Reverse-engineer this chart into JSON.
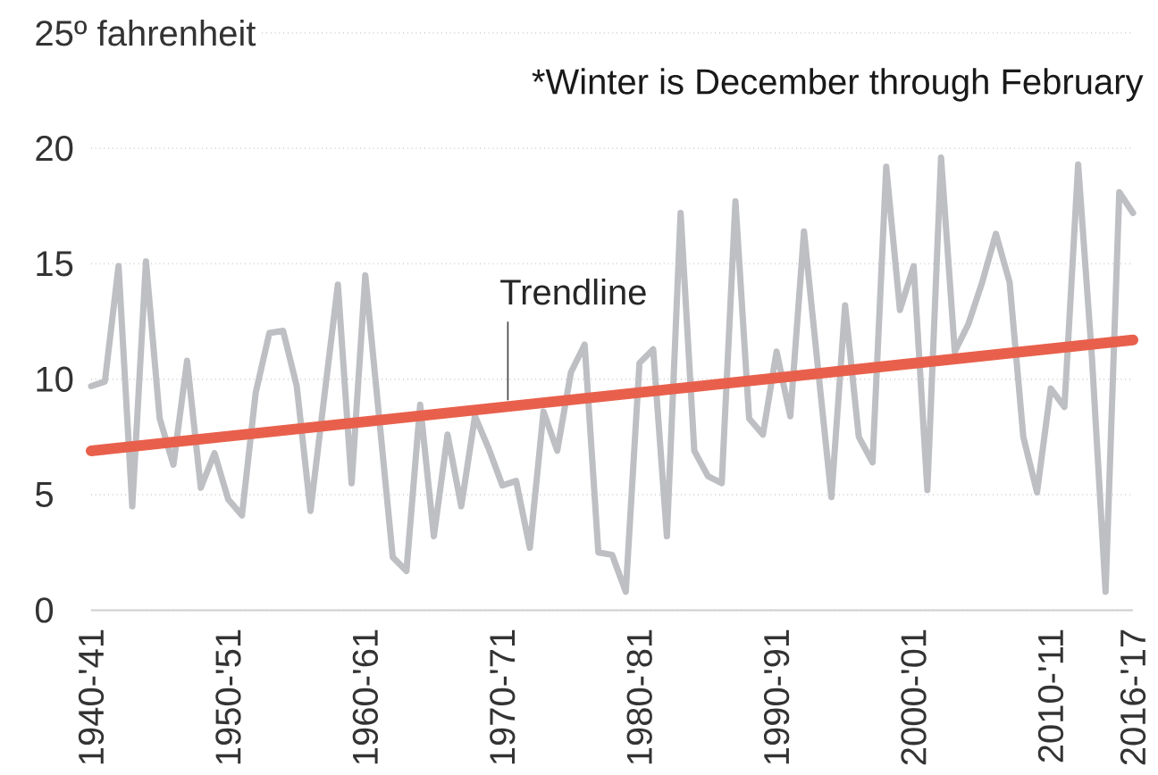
{
  "chart_data": {
    "type": "line",
    "categories": [
      "1940-'41",
      null,
      null,
      null,
      null,
      null,
      null,
      null,
      null,
      null,
      "1950-'51",
      null,
      null,
      null,
      null,
      null,
      null,
      null,
      null,
      null,
      "1960-'61",
      null,
      null,
      null,
      null,
      null,
      null,
      null,
      null,
      null,
      "1970-'71",
      null,
      null,
      null,
      null,
      null,
      null,
      null,
      null,
      null,
      "1980-'81",
      null,
      null,
      null,
      null,
      null,
      null,
      null,
      null,
      null,
      "1990-'91",
      null,
      null,
      null,
      null,
      null,
      null,
      null,
      null,
      null,
      "2000-'01",
      null,
      null,
      null,
      null,
      null,
      null,
      null,
      null,
      null,
      "2010-'11",
      null,
      null,
      null,
      null,
      null,
      "2016-'17"
    ],
    "series": [
      {
        "color": "#bdbfc3",
        "values": [
          9.7,
          9.9,
          14.9,
          4.5,
          15.1,
          8.3,
          6.3,
          10.8,
          5.3,
          6.8,
          4.8,
          4.1,
          9.4,
          12.0,
          12.1,
          9.7,
          4.3,
          9.2,
          14.1,
          5.5,
          14.5,
          8.4,
          2.3,
          1.7,
          8.9,
          3.2,
          7.6,
          4.5,
          8.4,
          7.0,
          5.4,
          5.6,
          2.7,
          8.6,
          6.9,
          10.3,
          11.5,
          2.5,
          2.4,
          0.8,
          10.7,
          11.3,
          3.2,
          17.2,
          6.9,
          5.8,
          5.5,
          17.7,
          8.3,
          7.6,
          11.2,
          8.4,
          16.4,
          10.6,
          4.9,
          13.2,
          7.5,
          6.4,
          19.2,
          13.0,
          14.9,
          5.2,
          19.6,
          11.2,
          12.4,
          14.2,
          16.3,
          14.2,
          7.5,
          5.1,
          9.6,
          8.8,
          19.3,
          11.0,
          0.8,
          18.1,
          17.2
        ]
      },
      {
        "name": "Trendline",
        "type": "line",
        "color": "#e8604c",
        "x": [
          "1940-'41",
          "2016-'17"
        ],
        "values": [
          6.9,
          11.7
        ]
      }
    ],
    "ylim": [
      0,
      25
    ],
    "yticks": [
      0,
      5,
      10,
      15,
      20,
      {
        "value": 25,
        "label": "25º fahrenheit"
      }
    ],
    "grid": "y",
    "annotations": [
      "*Winter is December through February"
    ]
  }
}
